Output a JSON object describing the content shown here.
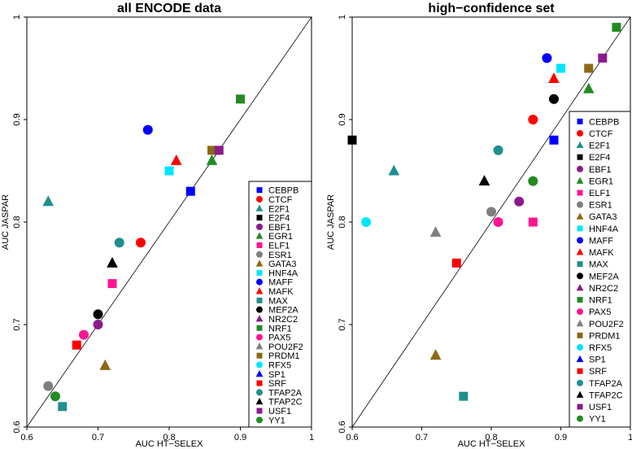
{
  "chart_data": [
    {
      "type": "scatter",
      "title": "all ENCODE data",
      "xlabel": "AUC HT−SELEX",
      "ylabel": "AUC JASPAR",
      "xlim": [
        0.6,
        1.0
      ],
      "ylim": [
        0.6,
        1.0
      ],
      "xticks": [
        0.6,
        0.7,
        0.8,
        0.9,
        1.0
      ],
      "xtick_labels": [
        "0.6",
        "0.7",
        "0.8",
        "0.9",
        "1"
      ],
      "yticks": [
        0.6,
        0.7,
        0.8,
        0.9,
        1.0
      ],
      "ytick_labels": [
        "0.6",
        "0.7",
        "0.8",
        "0.9",
        "1"
      ],
      "reference_line": "y = x",
      "legend_position": "bottom-right",
      "points": [
        {
          "tf": "CEBPB",
          "x": 0.83,
          "y": 0.83
        },
        {
          "tf": "CTCF",
          "x": 0.76,
          "y": 0.78
        },
        {
          "tf": "E2F1",
          "x": 0.63,
          "y": 0.82
        },
        {
          "tf": "EBF1",
          "x": 0.7,
          "y": 0.7
        },
        {
          "tf": "EGR1",
          "x": 0.86,
          "y": 0.86
        },
        {
          "tf": "ELF1",
          "x": 0.72,
          "y": 0.74
        },
        {
          "tf": "ESR1",
          "x": 0.63,
          "y": 0.64
        },
        {
          "tf": "GATA3",
          "x": 0.71,
          "y": 0.66
        },
        {
          "tf": "HNF4A",
          "x": 0.8,
          "y": 0.85
        },
        {
          "tf": "MAFF",
          "x": 0.77,
          "y": 0.89
        },
        {
          "tf": "MAFK",
          "x": 0.81,
          "y": 0.86
        },
        {
          "tf": "MAX",
          "x": 0.65,
          "y": 0.62
        },
        {
          "tf": "MEF2A",
          "x": 0.7,
          "y": 0.71
        },
        {
          "tf": "NRF1",
          "x": 0.9,
          "y": 0.92
        },
        {
          "tf": "PAX5",
          "x": 0.68,
          "y": 0.69
        },
        {
          "tf": "PRDM1",
          "x": 0.86,
          "y": 0.87
        },
        {
          "tf": "SRF",
          "x": 0.67,
          "y": 0.68
        },
        {
          "tf": "TFAP2A",
          "x": 0.73,
          "y": 0.78
        },
        {
          "tf": "TFAP2C",
          "x": 0.72,
          "y": 0.76
        },
        {
          "tf": "USF1",
          "x": 0.87,
          "y": 0.87
        },
        {
          "tf": "YY1",
          "x": 0.64,
          "y": 0.63
        }
      ]
    },
    {
      "type": "scatter",
      "title": "high−confidence set",
      "xlabel": "AUC HT−SELEX",
      "ylabel": "AUC JASPAR",
      "xlim": [
        0.6,
        1.0
      ],
      "ylim": [
        0.6,
        1.0
      ],
      "xticks": [
        0.6,
        0.7,
        0.8,
        0.9,
        1.0
      ],
      "xtick_labels": [
        "0.6",
        "0.7",
        "0.8",
        "0.9",
        "1"
      ],
      "yticks": [
        0.6,
        0.7,
        0.8,
        0.9,
        1.0
      ],
      "ytick_labels": [
        "0.6",
        "0.7",
        "0.8",
        "0.9",
        "1"
      ],
      "reference_line": "y = x",
      "legend_position": "bottom-right",
      "points": [
        {
          "tf": "CEBPB",
          "x": 0.89,
          "y": 0.88
        },
        {
          "tf": "CTCF",
          "x": 0.86,
          "y": 0.9
        },
        {
          "tf": "E2F1",
          "x": 0.66,
          "y": 0.85
        },
        {
          "tf": "E2F4",
          "x": 0.6,
          "y": 0.88
        },
        {
          "tf": "EBF1",
          "x": 0.84,
          "y": 0.82
        },
        {
          "tf": "EGR1",
          "x": 0.94,
          "y": 0.93
        },
        {
          "tf": "ELF1",
          "x": 0.86,
          "y": 0.8
        },
        {
          "tf": "ESR1",
          "x": 0.8,
          "y": 0.81
        },
        {
          "tf": "GATA3",
          "x": 0.72,
          "y": 0.67
        },
        {
          "tf": "HNF4A",
          "x": 0.9,
          "y": 0.95
        },
        {
          "tf": "MAFF",
          "x": 0.88,
          "y": 0.96
        },
        {
          "tf": "MAFK",
          "x": 0.89,
          "y": 0.94
        },
        {
          "tf": "MAX",
          "x": 0.76,
          "y": 0.63
        },
        {
          "tf": "MEF2A",
          "x": 0.89,
          "y": 0.92
        },
        {
          "tf": "NRF1",
          "x": 0.98,
          "y": 0.99
        },
        {
          "tf": "PAX5",
          "x": 0.81,
          "y": 0.8
        },
        {
          "tf": "POU2F2",
          "x": 0.72,
          "y": 0.79
        },
        {
          "tf": "PRDM1",
          "x": 0.94,
          "y": 0.95
        },
        {
          "tf": "RFX5",
          "x": 0.62,
          "y": 0.8
        },
        {
          "tf": "SRF",
          "x": 0.75,
          "y": 0.76
        },
        {
          "tf": "TFAP2A",
          "x": 0.81,
          "y": 0.87
        },
        {
          "tf": "TFAP2C",
          "x": 0.79,
          "y": 0.84
        },
        {
          "tf": "USF1",
          "x": 0.96,
          "y": 0.96
        },
        {
          "tf": "YY1",
          "x": 0.86,
          "y": 0.84
        }
      ]
    }
  ],
  "legend": [
    {
      "label": "CEBPB",
      "shape": "square",
      "color": "#0000ff"
    },
    {
      "label": "CTCF",
      "shape": "circle",
      "color": "#ff0000"
    },
    {
      "label": "E2F1",
      "shape": "triangle",
      "color": "#1f8f8f"
    },
    {
      "label": "E2F4",
      "shape": "square",
      "color": "#000000"
    },
    {
      "label": "EBF1",
      "shape": "circle",
      "color": "#8b1a8b"
    },
    {
      "label": "EGR1",
      "shape": "triangle",
      "color": "#228b22"
    },
    {
      "label": "ELF1",
      "shape": "square",
      "color": "#ff1493"
    },
    {
      "label": "ESR1",
      "shape": "circle",
      "color": "#7f7f7f"
    },
    {
      "label": "GATA3",
      "shape": "triangle",
      "color": "#8b6914"
    },
    {
      "label": "HNF4A",
      "shape": "square",
      "color": "#00e5ff"
    },
    {
      "label": "MAFF",
      "shape": "circle",
      "color": "#0000ff"
    },
    {
      "label": "MAFK",
      "shape": "triangle",
      "color": "#ff0000"
    },
    {
      "label": "MAX",
      "shape": "square",
      "color": "#1f8f8f"
    },
    {
      "label": "MEF2A",
      "shape": "circle",
      "color": "#000000"
    },
    {
      "label": "NR2C2",
      "shape": "triangle",
      "color": "#8b1a8b"
    },
    {
      "label": "NRF1",
      "shape": "square",
      "color": "#228b22"
    },
    {
      "label": "PAX5",
      "shape": "circle",
      "color": "#ff1493"
    },
    {
      "label": "POU2F2",
      "shape": "triangle",
      "color": "#7f7f7f"
    },
    {
      "label": "PRDM1",
      "shape": "square",
      "color": "#8b6914"
    },
    {
      "label": "RFX5",
      "shape": "circle",
      "color": "#00e5ff"
    },
    {
      "label": "SP1",
      "shape": "triangle",
      "color": "#0000ff"
    },
    {
      "label": "SRF",
      "shape": "square",
      "color": "#ff0000"
    },
    {
      "label": "TFAP2A",
      "shape": "circle",
      "color": "#1f8f8f"
    },
    {
      "label": "TFAP2C",
      "shape": "triangle",
      "color": "#000000"
    },
    {
      "label": "USF1",
      "shape": "square",
      "color": "#8b1a8b"
    },
    {
      "label": "YY1",
      "shape": "circle",
      "color": "#228b22"
    }
  ]
}
